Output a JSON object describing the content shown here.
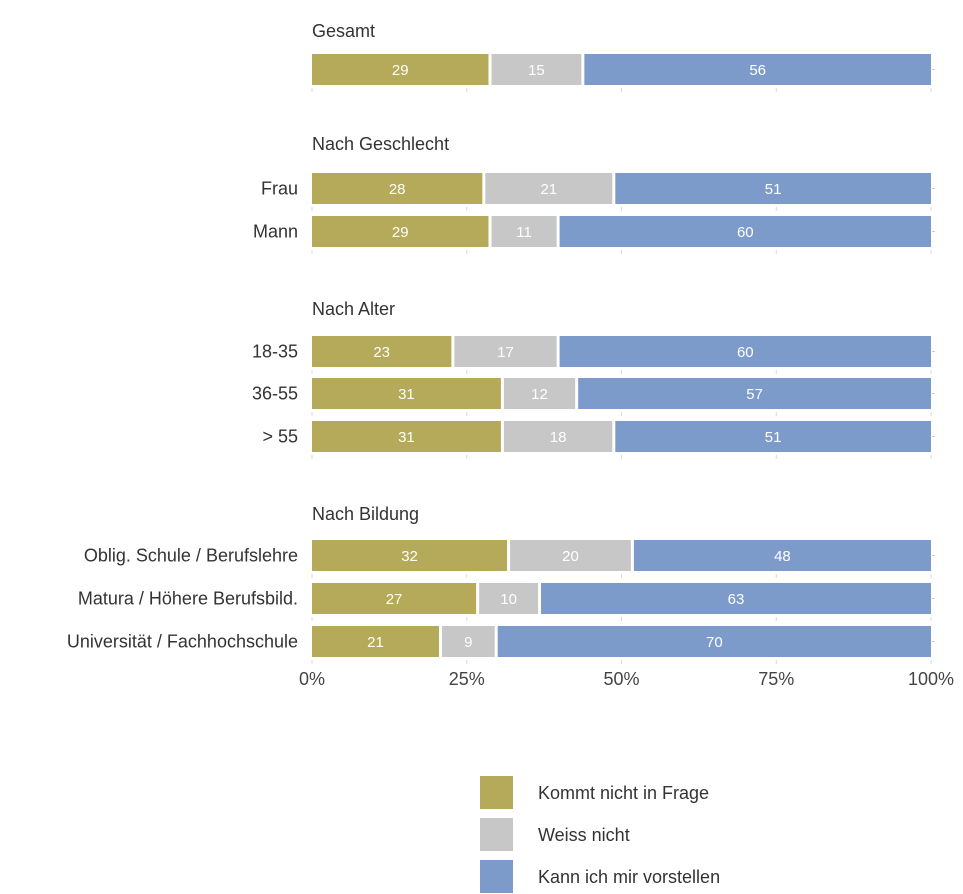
{
  "chart_data": {
    "type": "bar",
    "orientation": "horizontal",
    "stacked": true,
    "percent": true,
    "xlim": [
      0,
      100
    ],
    "x_ticks": [
      "0%",
      "25%",
      "50%",
      "75%",
      "100%"
    ],
    "series": [
      {
        "name": "Kommt nicht in Frage",
        "color": "#b5a95a"
      },
      {
        "name": "Weiss nicht",
        "color": "#c7c7c7"
      },
      {
        "name": "Kann ich mir vorstellen",
        "color": "#7d9bca"
      }
    ],
    "groups": [
      {
        "title": "Gesamt",
        "rows": [
          {
            "label": "",
            "values": [
              29,
              15,
              56
            ]
          }
        ]
      },
      {
        "title": "Nach Geschlecht",
        "rows": [
          {
            "label": "Frau",
            "values": [
              28,
              21,
              51
            ]
          },
          {
            "label": "Mann",
            "values": [
              29,
              11,
              60
            ]
          }
        ]
      },
      {
        "title": "Nach Alter",
        "rows": [
          {
            "label": "18-35",
            "values": [
              23,
              17,
              60
            ]
          },
          {
            "label": "36-55",
            "values": [
              31,
              12,
              57
            ]
          },
          {
            "label": "> 55",
            "values": [
              31,
              18,
              51
            ]
          }
        ]
      },
      {
        "title": "Nach Bildung",
        "rows": [
          {
            "label": "Oblig. Schule / Berufslehre",
            "values": [
              32,
              20,
              48
            ]
          },
          {
            "label": "Matura / Höhere Berufsbild.",
            "values": [
              27,
              10,
              63
            ]
          },
          {
            "label": "Universität / Fachhochschule",
            "values": [
              21,
              9,
              70
            ]
          }
        ]
      }
    ],
    "legend_position": "bottom"
  }
}
